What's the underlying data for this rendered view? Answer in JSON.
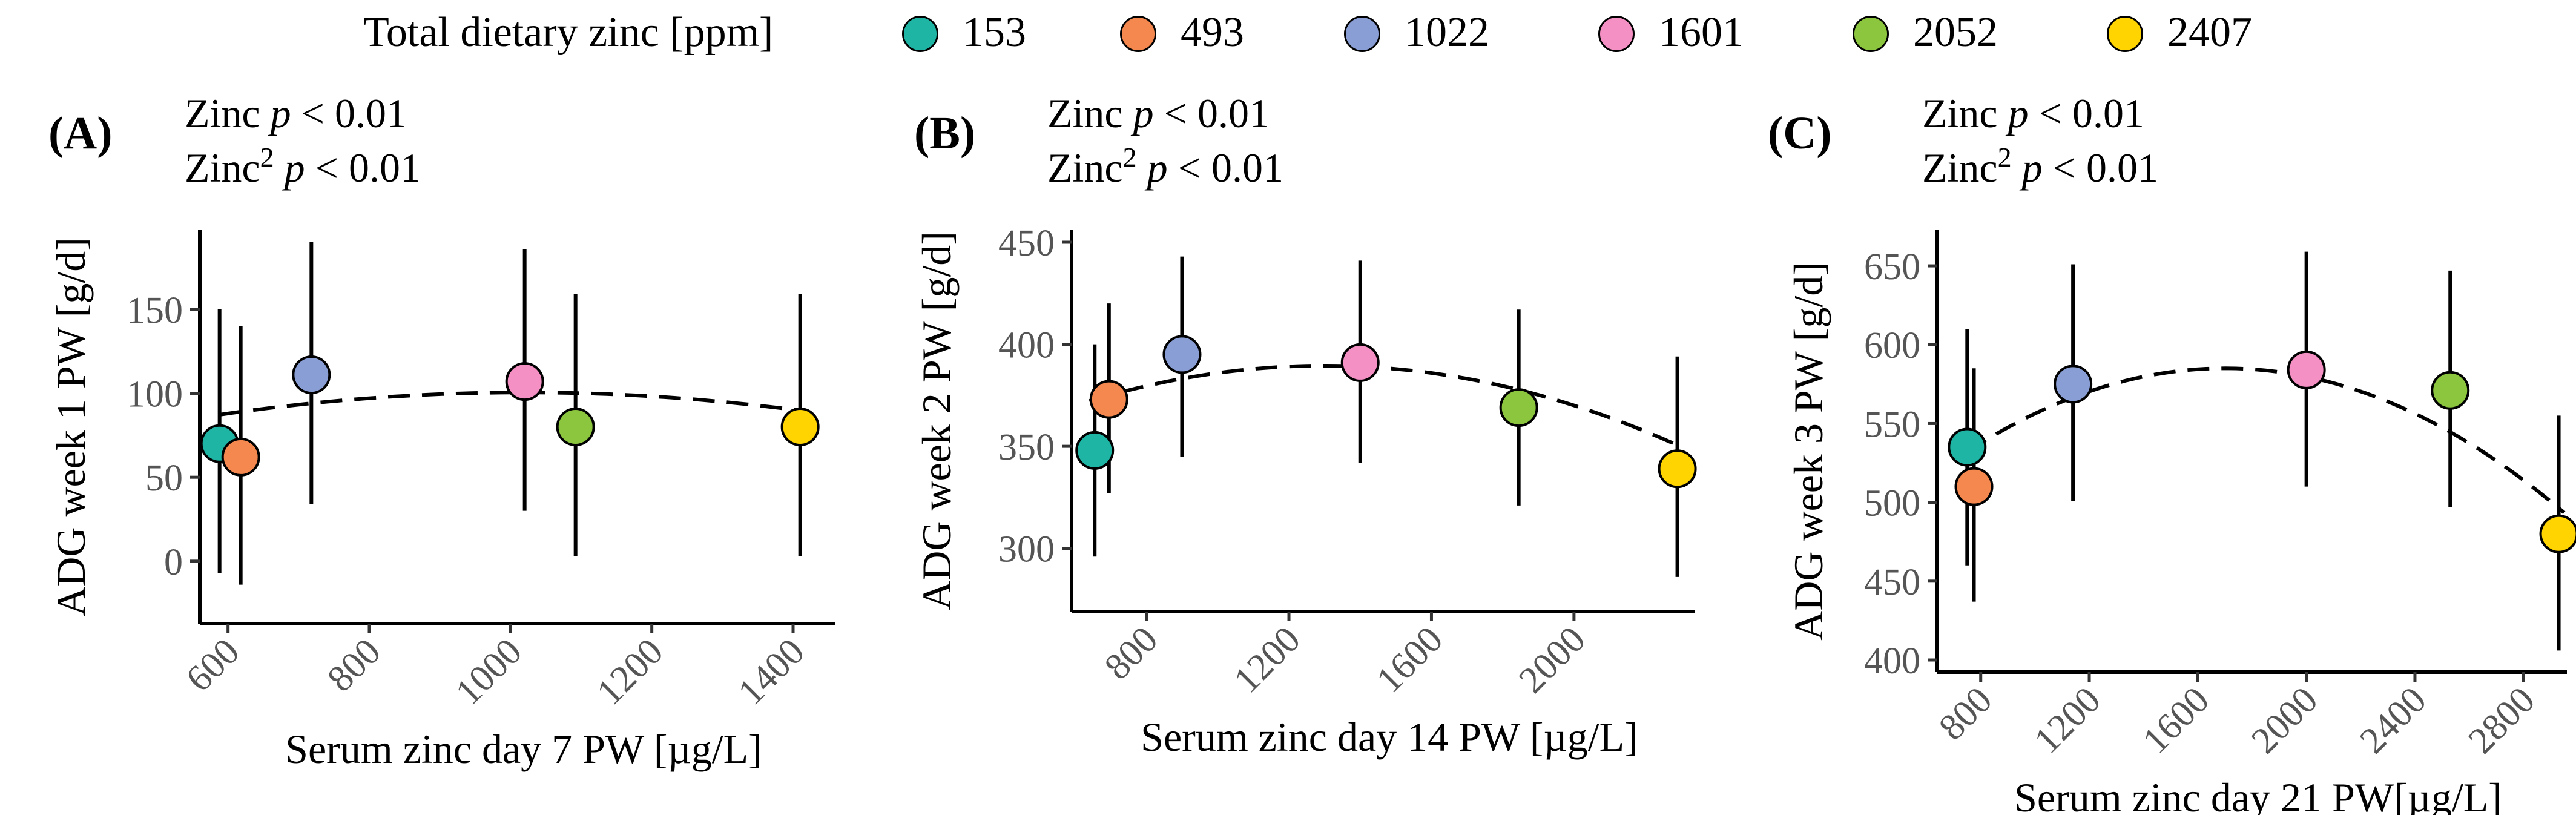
{
  "legend": {
    "title": "Total dietary zinc [ppm]",
    "items": [
      {
        "label": "153",
        "color": "#1fb5a4"
      },
      {
        "label": "493",
        "color": "#f5884e"
      },
      {
        "label": "1022",
        "color": "#8a9ed6"
      },
      {
        "label": "1601",
        "color": "#f590c4"
      },
      {
        "label": "2052",
        "color": "#8cc63f"
      },
      {
        "label": "2407",
        "color": "#ffd400"
      }
    ]
  },
  "chart_data": [
    {
      "type": "scatter",
      "tag": "(A)",
      "annotations": [
        "Zinc p < 0.01",
        "Zinc2 p < 0.01"
      ],
      "xlabel": "Serum zinc day 7 PW [µg/L]",
      "ylabel": "ADG week 1 PW [g/d]",
      "xlim": [
        560,
        1460
      ],
      "ylim": [
        -30,
        190
      ],
      "xticks": [
        600,
        800,
        1000,
        1200,
        1400
      ],
      "yticks": [
        0,
        50,
        100,
        150
      ],
      "points": [
        {
          "x": 588,
          "y": 70,
          "lo": -7,
          "hi": 150,
          "group": "153"
        },
        {
          "x": 618,
          "y": 62,
          "lo": -14,
          "hi": 140,
          "group": "493"
        },
        {
          "x": 718,
          "y": 111,
          "lo": 34,
          "hi": 190,
          "group": "1022"
        },
        {
          "x": 1020,
          "y": 107,
          "lo": 30,
          "hi": 186,
          "group": "1601"
        },
        {
          "x": 1092,
          "y": 80,
          "lo": 3,
          "hi": 159,
          "group": "2052"
        },
        {
          "x": 1410,
          "y": 80,
          "lo": 3,
          "hi": 159,
          "group": "2407"
        }
      ],
      "fit": {
        "x_from": 588,
        "x_to": 1410,
        "a": 100.5,
        "b": 7.1e-05,
        "vertex": 1020
      }
    },
    {
      "type": "scatter",
      "tag": "(B)",
      "annotations": [
        "Zinc p < 0.01",
        "Zinc2 p < 0.01"
      ],
      "xlabel": "Serum zinc day 14 PW [µg/L]",
      "ylabel": "ADG week 2 PW [g/d]",
      "xlim": [
        590,
        2340
      ],
      "ylim": [
        275,
        450
      ],
      "xticks": [
        800,
        1200,
        1600,
        2000
      ],
      "yticks": [
        300,
        350,
        400,
        450
      ],
      "points": [
        {
          "x": 655,
          "y": 348,
          "lo": 296,
          "hi": 400,
          "group": "153"
        },
        {
          "x": 695,
          "y": 373,
          "lo": 327,
          "hi": 420,
          "group": "493"
        },
        {
          "x": 900,
          "y": 395,
          "lo": 345,
          "hi": 443,
          "group": "1022"
        },
        {
          "x": 1400,
          "y": 391,
          "lo": 342,
          "hi": 441,
          "group": "1601"
        },
        {
          "x": 1845,
          "y": 369,
          "lo": 321,
          "hi": 417,
          "group": "2052"
        },
        {
          "x": 2290,
          "y": 339,
          "lo": 286,
          "hi": 394,
          "group": "2407"
        }
      ],
      "fit": {
        "x_from": 640,
        "x_to": 2300,
        "a": 389.5,
        "b": 3.97e-05,
        "vertex": 1300
      }
    },
    {
      "type": "scatter",
      "tag": "(C)",
      "annotations": [
        "Zinc p < 0.01",
        "Zinc2 p < 0.01"
      ],
      "xlabel": "Serum zinc day 21 PW[µg/L]",
      "ylabel": "ADG week 3 PW [g/d]",
      "xlim": [
        640,
        2960
      ],
      "ylim": [
        400,
        665
      ],
      "xticks": [
        800,
        1200,
        1600,
        2000,
        2400,
        2800
      ],
      "yticks": [
        400,
        450,
        500,
        550,
        600,
        650
      ],
      "points": [
        {
          "x": 750,
          "y": 535,
          "lo": 460,
          "hi": 610,
          "group": "153"
        },
        {
          "x": 775,
          "y": 510,
          "lo": 437,
          "hi": 585,
          "group": "493"
        },
        {
          "x": 1140,
          "y": 575,
          "lo": 501,
          "hi": 651,
          "group": "1022"
        },
        {
          "x": 2000,
          "y": 584,
          "lo": 510,
          "hi": 659,
          "group": "1601"
        },
        {
          "x": 2530,
          "y": 571,
          "lo": 497,
          "hi": 647,
          "group": "2052"
        },
        {
          "x": 2930,
          "y": 480,
          "lo": 406,
          "hi": 555,
          "group": "2407"
        }
      ],
      "fit": {
        "x_from": 750,
        "x_to": 2950,
        "a": 585,
        "b": 5.86e-05,
        "vertex": 1700
      }
    }
  ]
}
